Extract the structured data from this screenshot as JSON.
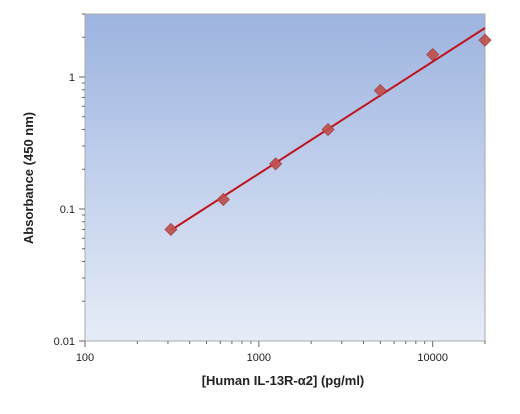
{
  "chart_data": {
    "type": "scatter",
    "title": "",
    "xlabel": "[Human IL-13R-α2] (pg/ml)",
    "ylabel": "Absorbance (450 nm)",
    "x_scale": "log",
    "y_scale": "log",
    "xlim": [
      100,
      20000
    ],
    "ylim": [
      0.01,
      3
    ],
    "x_ticks": [
      100,
      1000,
      10000
    ],
    "x_tick_labels": [
      "100",
      "1000",
      "10000"
    ],
    "y_ticks": [
      0.01,
      0.1,
      1
    ],
    "y_tick_labels": [
      "0.01",
      "0.1",
      "1"
    ],
    "grid": false,
    "legend": "none",
    "series": [
      {
        "points": [
          {
            "x": 312,
            "y": 0.07
          },
          {
            "x": 625,
            "y": 0.118
          },
          {
            "x": 1250,
            "y": 0.22
          },
          {
            "x": 2500,
            "y": 0.4
          },
          {
            "x": 5000,
            "y": 0.79
          },
          {
            "x": 10000,
            "y": 1.48
          },
          {
            "x": 20000,
            "y": 1.9
          }
        ],
        "marker": "diamond",
        "color": "#c0504d"
      }
    ],
    "fit_line": {
      "color": "#c0141e",
      "from": {
        "x": 312,
        "y": 0.069
      },
      "to": {
        "x": 20000,
        "y": 2.35
      }
    },
    "plot_background": {
      "top": "#9db4e0",
      "bottom": "#e6ecf7"
    }
  }
}
